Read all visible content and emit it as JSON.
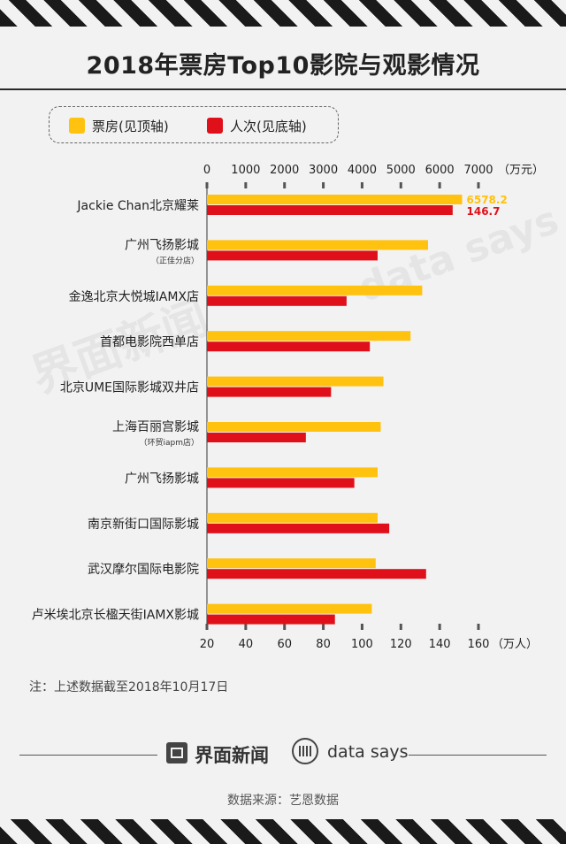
{
  "title": "2018年票房Top10影院与观影情况",
  "legend": {
    "box_office": "票房(见顶轴)",
    "attendance": "人次(见底轴)"
  },
  "colors": {
    "box_office": "#ffc20e",
    "attendance": "#e0101a"
  },
  "chart_data": {
    "type": "bar",
    "orientation": "horizontal",
    "categories": [
      "Jackie Chan北京耀莱",
      "广州飞扬影城",
      "金逸北京大悦城IAMX店",
      "首都电影院西单店",
      "北京UME国际影城双井店",
      "上海百丽宫影城",
      "广州飞扬影城",
      "南京新街口国际影城",
      "武汉摩尔国际电影院",
      "卢米埃北京长楹天街IAMX影城"
    ],
    "category_notes": [
      "",
      "（正佳分店）",
      "",
      "",
      "",
      "（环贸iapm店）",
      "",
      "",
      "",
      ""
    ],
    "series": [
      {
        "name": "票房(见顶轴)",
        "axis": "top",
        "values": [
          6578.2,
          5700,
          5550,
          5250,
          4550,
          4480,
          4400,
          4400,
          4350,
          4250
        ]
      },
      {
        "name": "人次(见底轴)",
        "axis": "bottom",
        "values": [
          146.7,
          108,
          92,
          104,
          84,
          71,
          96,
          114,
          133,
          86
        ]
      }
    ],
    "data_labels": {
      "box_office_first": "6578.2",
      "attendance_first": "146.7"
    },
    "top_axis": {
      "ticks": [
        0,
        1000,
        2000,
        3000,
        4000,
        5000,
        6000,
        7000
      ],
      "unit": "（万元）",
      "range": [
        0,
        7000
      ]
    },
    "bottom_axis": {
      "ticks": [
        20,
        40,
        60,
        80,
        100,
        120,
        140,
        160
      ],
      "unit": "（万人）",
      "range": [
        20,
        160
      ]
    }
  },
  "note": "注：上述数据截至2018年10月17日",
  "brand_left": "界面新闻",
  "brand_right": "data says",
  "source": "数据来源：艺恩数据",
  "watermark_left": "界面新闻",
  "watermark_right": "data says"
}
